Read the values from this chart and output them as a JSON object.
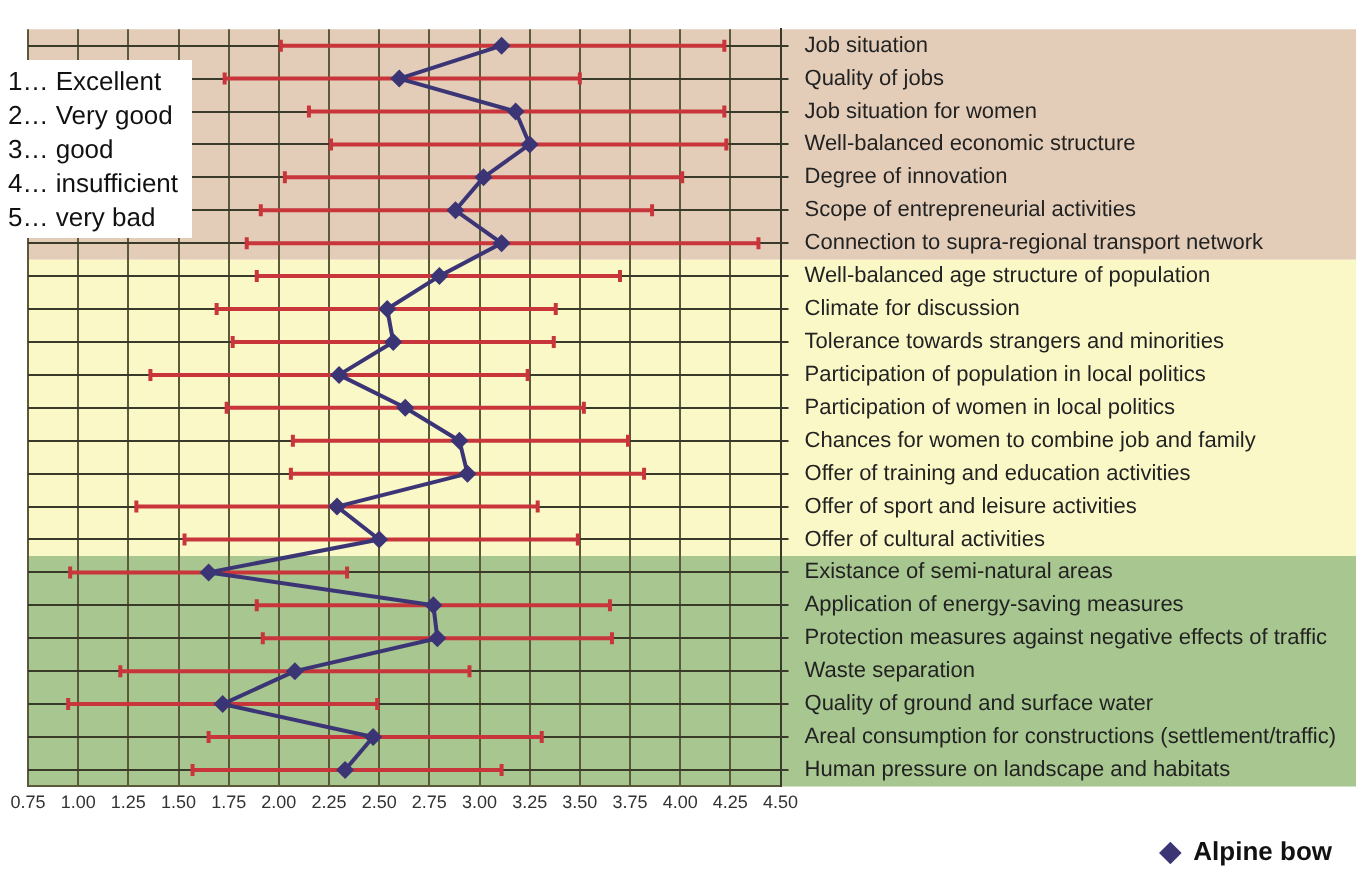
{
  "chart_data": {
    "type": "line",
    "orientation": "horizontal",
    "categories": [
      "Job situation",
      "Quality of jobs",
      "Job situation for women",
      "Well-balanced economic structure",
      "Degree of innovation",
      "Scope of entrepreneurial activities",
      "Connection to supra-regional transport network",
      "Well-balanced age structure of population",
      "Climate for discussion",
      "Tolerance towards strangers and minorities",
      "Participation of population in local politics",
      "Participation of women in local politics",
      "Chances for women to combine job and family",
      "Offer of training and education activities",
      "Offer of sport and leisure activities",
      "Offer of cultural activities",
      "Existance of semi-natural areas",
      "Application of energy-saving measures",
      "Protection measures against negative effects of traffic",
      "Waste separation",
      "Quality of ground and surface water",
      "Areal consumption for constructions (settlement/traffic)",
      "Human pressure on landscape and habitats"
    ],
    "series": [
      {
        "name": "Alpine bow",
        "color": "#3b3575",
        "values": [
          3.11,
          2.6,
          3.18,
          3.25,
          3.02,
          2.88,
          3.11,
          2.8,
          2.54,
          2.57,
          2.3,
          2.63,
          2.9,
          2.94,
          2.29,
          2.5,
          1.65,
          2.77,
          2.79,
          2.08,
          1.72,
          2.47,
          2.33
        ],
        "errors": [
          [
            2.01,
            4.22
          ],
          [
            1.73,
            3.5
          ],
          [
            2.15,
            4.22
          ],
          [
            2.26,
            4.23
          ],
          [
            2.03,
            4.01
          ],
          [
            1.91,
            3.86
          ],
          [
            1.84,
            4.39
          ],
          [
            1.89,
            3.7
          ],
          [
            1.69,
            3.38
          ],
          [
            1.77,
            3.37
          ],
          [
            1.36,
            3.24
          ],
          [
            1.74,
            3.52
          ],
          [
            2.07,
            3.74
          ],
          [
            2.06,
            3.82
          ],
          [
            1.29,
            3.29
          ],
          [
            1.53,
            3.49
          ],
          [
            0.96,
            2.34
          ],
          [
            1.89,
            3.65
          ],
          [
            1.92,
            3.66
          ],
          [
            1.21,
            2.95
          ],
          [
            0.95,
            2.49
          ],
          [
            1.65,
            3.31
          ],
          [
            1.57,
            3.11
          ]
        ]
      }
    ],
    "xlim": [
      0.75,
      4.5
    ],
    "xticks": [
      {
        "value": 0.75,
        "label": "0.75"
      },
      {
        "value": 1,
        "label": "1.00"
      },
      {
        "value": 1.25,
        "label": "1.25"
      },
      {
        "value": 1.5,
        "label": "1.50"
      },
      {
        "value": 1.75,
        "label": "1.75"
      },
      {
        "value": 2,
        "label": "2.00"
      },
      {
        "value": 2.25,
        "label": "2.25"
      },
      {
        "value": 2.5,
        "label": "2.50"
      },
      {
        "value": 2.75,
        "label": "2.75"
      },
      {
        "value": 3,
        "label": "3.00"
      },
      {
        "value": 3.25,
        "label": "3.25"
      },
      {
        "value": 3.5,
        "label": "3.50"
      },
      {
        "value": 3.75,
        "label": "3.75"
      },
      {
        "value": 4,
        "label": "4.00"
      },
      {
        "value": 4.25,
        "label": "4.25"
      },
      {
        "value": 4.5,
        "label": "4.50"
      }
    ],
    "bands": [
      {
        "axis": "y",
        "from": "Job situation",
        "to": "Connection to supra-regional transport network",
        "color": "#e3cdb8"
      },
      {
        "axis": "y",
        "from": "Well-balanced age structure of population",
        "to": "Offer of cultural activities",
        "color": "#fbf8c8"
      },
      {
        "axis": "y",
        "from": "Existance of semi-natural areas",
        "to": "Human pressure on landscape and habitats",
        "color": "#a8c690"
      }
    ],
    "annotations": [
      "1… Excellent",
      "2… Very good",
      "3… good",
      "4… insufficient",
      "5… very bad"
    ],
    "grid": true,
    "legend": "bottom",
    "marker": "diamond",
    "line_style": "solid"
  }
}
